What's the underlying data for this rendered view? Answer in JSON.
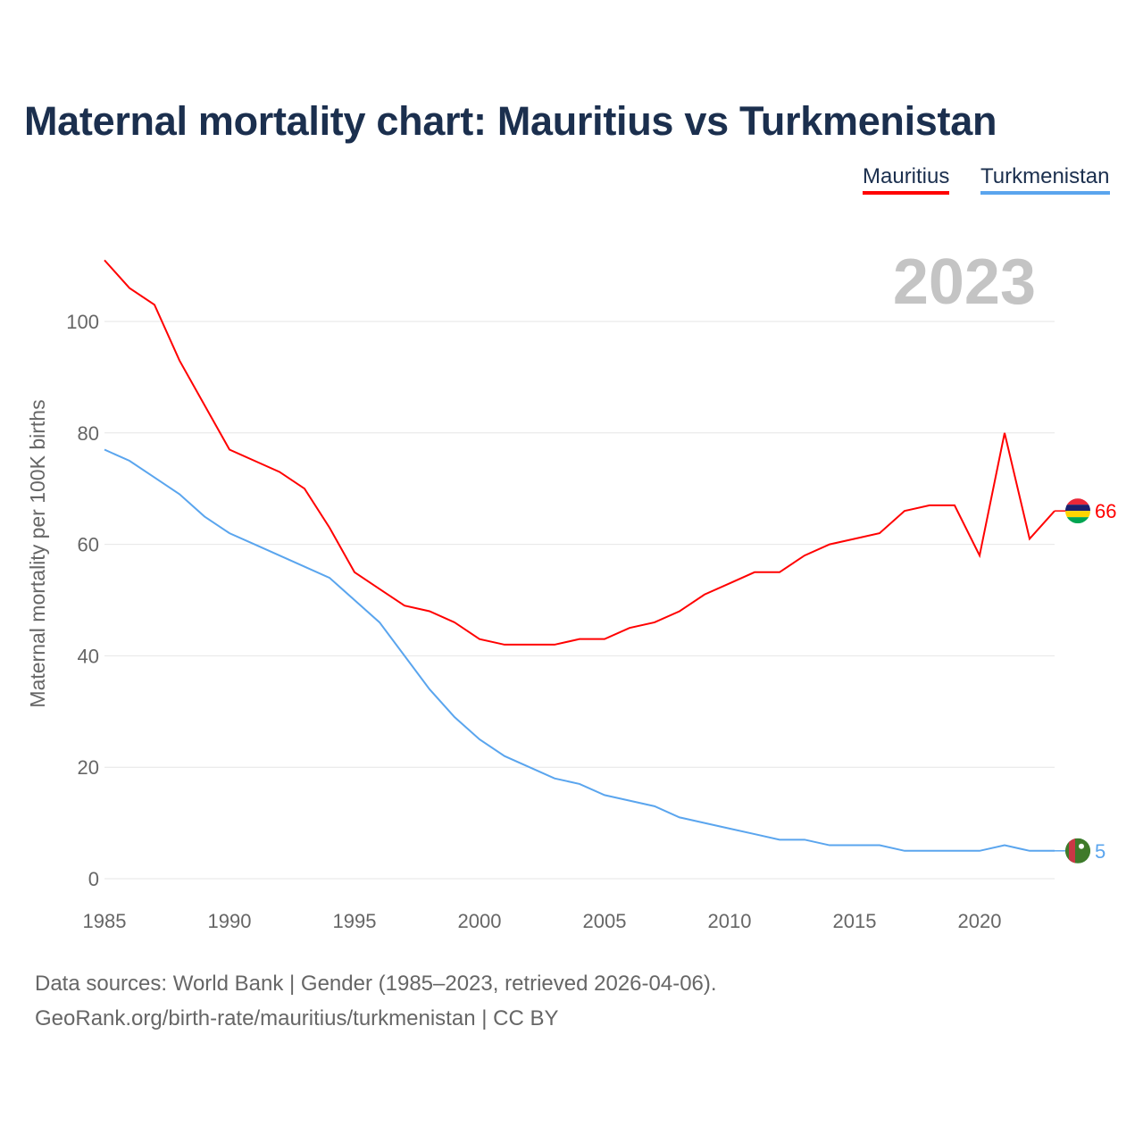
{
  "title": "Maternal mortality chart: Mauritius vs Turkmenistan",
  "legend": [
    "Mauritius",
    "Turkmenistan"
  ],
  "footer": {
    "line1": "Data sources: World Bank | Gender (1985–2023, retrieved 2026-04-06).",
    "line2": "GeoRank.org/birth-rate/mauritius/turkmenistan | CC BY"
  },
  "chart_data": {
    "type": "line",
    "title": "Maternal mortality chart: Mauritius vs Turkmenistan",
    "ylabel": "Maternal mortality per 100K births",
    "xlabel": "",
    "year_label": "2023",
    "x": [
      1985,
      1986,
      1987,
      1988,
      1989,
      1990,
      1991,
      1992,
      1993,
      1994,
      1995,
      1996,
      1997,
      1998,
      1999,
      2000,
      2001,
      2002,
      2003,
      2004,
      2005,
      2006,
      2007,
      2008,
      2009,
      2010,
      2011,
      2012,
      2013,
      2014,
      2015,
      2016,
      2017,
      2018,
      2019,
      2020,
      2021,
      2022,
      2023
    ],
    "xlim": [
      1985,
      2023
    ],
    "ylim": [
      0,
      110
    ],
    "xticks": [
      "1985",
      "1990",
      "1995",
      "2000",
      "2005",
      "2010",
      "2015",
      "2020"
    ],
    "yticks": [
      "0",
      "20",
      "40",
      "60",
      "80",
      "100"
    ],
    "grid": true,
    "legend_position": "top-right",
    "series": [
      {
        "name": "Mauritius",
        "color": "#ff0000",
        "end_label": "66",
        "values": [
          111,
          106,
          103,
          93,
          85,
          77,
          75,
          73,
          70,
          63,
          55,
          52,
          49,
          48,
          46,
          43,
          42,
          42,
          42,
          43,
          43,
          45,
          46,
          48,
          51,
          53,
          55,
          55,
          58,
          60,
          61,
          62,
          66,
          67,
          67,
          58,
          80,
          61,
          66
        ]
      },
      {
        "name": "Turkmenistan",
        "color": "#5aa5ee",
        "end_label": "5",
        "values": [
          77,
          75,
          72,
          69,
          65,
          62,
          60,
          58,
          56,
          54,
          50,
          46,
          40,
          34,
          29,
          25,
          22,
          20,
          18,
          17,
          15,
          14,
          13,
          11,
          10,
          9,
          8,
          7,
          7,
          6,
          6,
          6,
          5,
          5,
          5,
          5,
          6,
          5,
          5
        ]
      }
    ]
  }
}
